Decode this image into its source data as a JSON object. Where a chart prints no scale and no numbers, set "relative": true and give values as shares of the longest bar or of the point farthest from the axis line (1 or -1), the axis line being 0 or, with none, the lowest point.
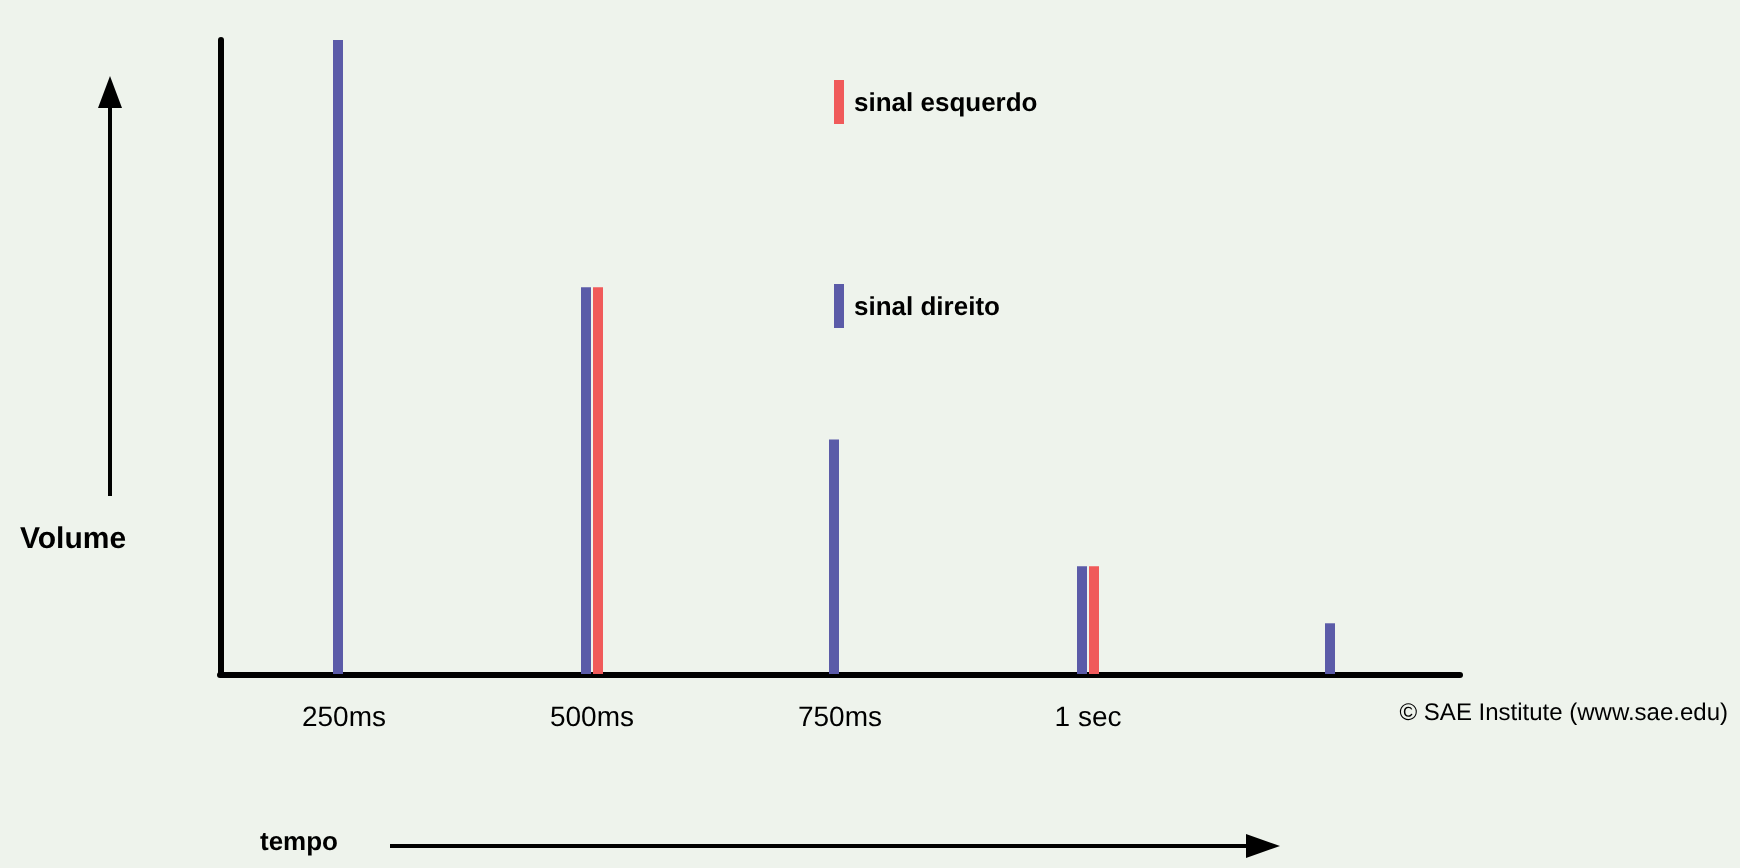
{
  "chart_data": {
    "type": "bar",
    "relative": true,
    "xlabel": "tempo",
    "ylabel": "Volume",
    "categories": [
      "250ms",
      "500ms",
      "750ms",
      "1 sec",
      null
    ],
    "series": [
      {
        "name": "sinal direito",
        "color": "#5b5ba8",
        "values": [
          1,
          0.61,
          0.37,
          0.17,
          0.08
        ]
      },
      {
        "name": "sinal esquerdo",
        "color": "#f05a5a",
        "values": [
          null,
          0.61,
          null,
          0.17,
          null
        ]
      }
    ],
    "legend": "top",
    "grid": false,
    "annotations": [
      "© SAE Institute (www.sae.edu)"
    ]
  }
}
